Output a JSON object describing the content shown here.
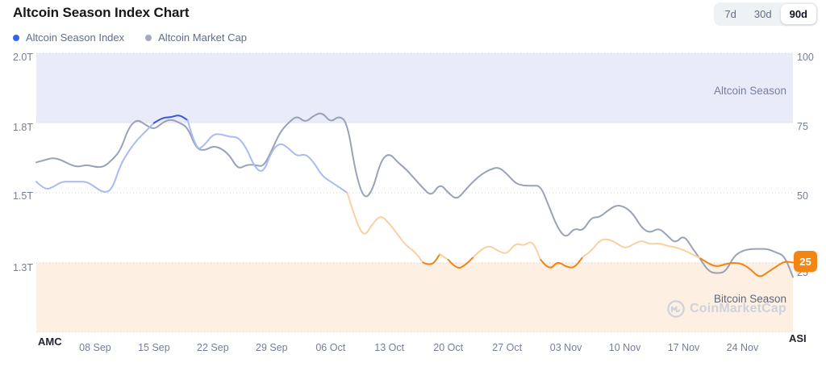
{
  "header": {
    "title": "Altcoin Season Index Chart"
  },
  "range_buttons": [
    {
      "label": "7d",
      "selected": false
    },
    {
      "label": "30d",
      "selected": false
    },
    {
      "label": "90d",
      "selected": true
    }
  ],
  "legend": [
    {
      "label": "Altcoin Season Index",
      "dot_color": "#3861fb"
    },
    {
      "label": "Altcoin Market Cap",
      "dot_color": "#a3aabc"
    }
  ],
  "bands": {
    "altcoin_label": "Altcoin Season",
    "bitcoin_label": "Bitcoin Season"
  },
  "watermark": {
    "text": "CoinMarketCap"
  },
  "badge": {
    "value": "25"
  },
  "colors": {
    "asi_blue": "#3a57db",
    "asi_lavender": "#a8bbf3",
    "asi_peach": "#f9d0a0",
    "asi_orange": "#ef8414",
    "amc_line": "#99a2b6",
    "altcoin_band": "#e9ebf9",
    "bitcoin_band": "#fdf0e3",
    "badge_bg": "#f28612",
    "gridline": "#cbd1de"
  },
  "chart_data": {
    "type": "line",
    "title": "Altcoin Season Index Chart",
    "x_tick_labels": [
      "08 Sep",
      "15 Sep",
      "22 Sep",
      "29 Sep",
      "06 Oct",
      "13 Oct",
      "20 Oct",
      "27 Oct",
      "03 Nov",
      "10 Nov",
      "17 Nov",
      "24 Nov"
    ],
    "x_tick_day_indices": [
      7,
      14,
      21,
      28,
      35,
      42,
      49,
      56,
      63,
      70,
      77,
      84
    ],
    "left_axis": {
      "label": "AMC",
      "tick_labels": [
        "2.0T",
        "1.8T",
        "1.5T",
        "1.3T"
      ],
      "tick_values_trillions": [
        2.0,
        1.8,
        1.5,
        1.3
      ]
    },
    "right_axis": {
      "label": "ASI",
      "tick_labels": [
        "100",
        "75",
        "50",
        "25"
      ],
      "tick_values": [
        100,
        75,
        50,
        25
      ],
      "range": [
        0,
        100
      ]
    },
    "bands": {
      "altcoin_season": {
        "from": 75,
        "to": 100
      },
      "bitcoin_season": {
        "from": 0,
        "to": 25
      }
    },
    "series": [
      {
        "name": "Altcoin Season Index",
        "axis": "right",
        "current_value": 25,
        "values": [
          54,
          51,
          52,
          54,
          54,
          54,
          54,
          52,
          50,
          51,
          60,
          65,
          69,
          72,
          75,
          77,
          77,
          78,
          76,
          65,
          67,
          71,
          71,
          70,
          70,
          66,
          59,
          57,
          65,
          68,
          66,
          63,
          64,
          61,
          56,
          54,
          52,
          50,
          40,
          34,
          39,
          42,
          39,
          35,
          31,
          29,
          25,
          23.5,
          28,
          26,
          22.5,
          24,
          27,
          30,
          31,
          29,
          28,
          32,
          31,
          33,
          26,
          22,
          25.5,
          23.5,
          23,
          27,
          29,
          33,
          33.5,
          32,
          30,
          31.5,
          33,
          31.5,
          32,
          31,
          30.5,
          29.5,
          28,
          26.5,
          24.5,
          23.5,
          24.5,
          25,
          24.5,
          22.5,
          19.5,
          21.5,
          23.5,
          25.5,
          25
        ]
      },
      {
        "name": "Altcoin Market Cap",
        "axis": "left",
        "unit": "trillion USD",
        "values": [
          1.63,
          1.64,
          1.65,
          1.64,
          1.62,
          1.61,
          1.62,
          1.61,
          1.61,
          1.64,
          1.68,
          1.78,
          1.81,
          1.79,
          1.77,
          1.8,
          1.81,
          1.8,
          1.78,
          1.69,
          1.68,
          1.7,
          1.69,
          1.66,
          1.6,
          1.62,
          1.62,
          1.61,
          1.68,
          1.76,
          1.8,
          1.82,
          1.8,
          1.82,
          1.83,
          1.8,
          1.82,
          1.8,
          1.58,
          1.48,
          1.51,
          1.64,
          1.67,
          1.63,
          1.6,
          1.56,
          1.52,
          1.49,
          1.54,
          1.5,
          1.48,
          1.51,
          1.55,
          1.58,
          1.6,
          1.61,
          1.58,
          1.54,
          1.53,
          1.53,
          1.53,
          1.46,
          1.4,
          1.37,
          1.4,
          1.39,
          1.43,
          1.43,
          1.45,
          1.465,
          1.46,
          1.44,
          1.4,
          1.385,
          1.4,
          1.38,
          1.355,
          1.38,
          1.344,
          1.31,
          1.275,
          1.27,
          1.275,
          1.32,
          1.335,
          1.34,
          1.34,
          1.34,
          1.33,
          1.32,
          1.26
        ]
      }
    ]
  }
}
